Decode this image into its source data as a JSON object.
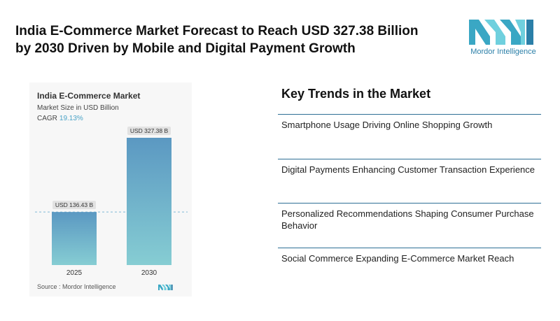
{
  "headline": "India E-Commerce Market Forecast to Reach USD 327.38 Billion by 2030 Driven by Mobile and Digital Payment Growth",
  "brand": {
    "name": "Mordor Intelligence",
    "logo_icon": "mordor-logo-icon",
    "colors": {
      "teal": "#3aa7c4",
      "light": "#6fd0de",
      "dark": "#2b7fa8"
    }
  },
  "chart_data": {
    "type": "bar",
    "title": "India E-Commerce Market",
    "subtitle": "Market Size in USD Billion",
    "cagr_label": "CAGR",
    "cagr_value": "19.13%",
    "categories": [
      "2025",
      "2030"
    ],
    "values": [
      136.43,
      327.38
    ],
    "data_labels": [
      "USD 136.43 B",
      "USD 327.38 B"
    ],
    "ylim": [
      0,
      327.38
    ],
    "xlabel": "",
    "ylabel": "",
    "grid": false,
    "reference_line": "dashed line at 2025 value",
    "bar_gradient": {
      "top": "#5b98c2",
      "bottom": "#86cdd3"
    },
    "source": "Source : Mordor Intelligence"
  },
  "trends": {
    "title": "Key Trends in the Market",
    "items": [
      "Smartphone Usage Driving Online Shopping Growth",
      "Digital Payments Enhancing Customer Transaction Experience",
      "Personalized Recommendations Shaping Consumer Purchase Behavior",
      "Social Commerce Expanding E-Commerce Market Reach"
    ]
  }
}
